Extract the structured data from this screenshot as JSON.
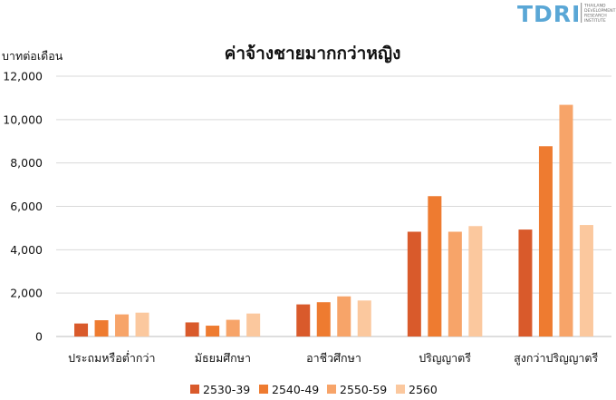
{
  "logo": {
    "text": "TDRI",
    "subtitle_lines": [
      "THAILAND",
      "DEVELOPMENT",
      "RESEARCH",
      "INSTITUTE"
    ],
    "color": "#5AA7D6"
  },
  "chart_data": {
    "type": "bar",
    "title": "ค่าจ้างชายมากกว่าหญิง",
    "ylabel": "บาทต่อเดือน",
    "xlabel": "",
    "ylim": [
      0,
      12000
    ],
    "yticks": [
      0,
      2000,
      4000,
      6000,
      8000,
      10000,
      12000
    ],
    "ytick_labels": [
      "0",
      "2,000",
      "4,000",
      "6,000",
      "8,000",
      "10,000",
      "12,000"
    ],
    "grid": "horizontal",
    "legend_position": "bottom",
    "categories": [
      "ประถมหรือต่ำกว่า",
      "มัธยมศึกษา",
      "อาชีวศึกษา",
      "ปริญญาตรี",
      "สูงกว่าปริญญาตรี"
    ],
    "series": [
      {
        "name": "2530-39",
        "color": "#D95A2B",
        "values": [
          600,
          650,
          1480,
          4830,
          4930
        ]
      },
      {
        "name": "2540-49",
        "color": "#EE7B30",
        "values": [
          750,
          500,
          1580,
          6470,
          8770
        ]
      },
      {
        "name": "2550-59",
        "color": "#F7A469",
        "values": [
          1020,
          770,
          1850,
          4830,
          10680
        ]
      },
      {
        "name": "2560",
        "color": "#FBC89E",
        "values": [
          1100,
          1060,
          1660,
          5090,
          5140
        ]
      }
    ]
  }
}
